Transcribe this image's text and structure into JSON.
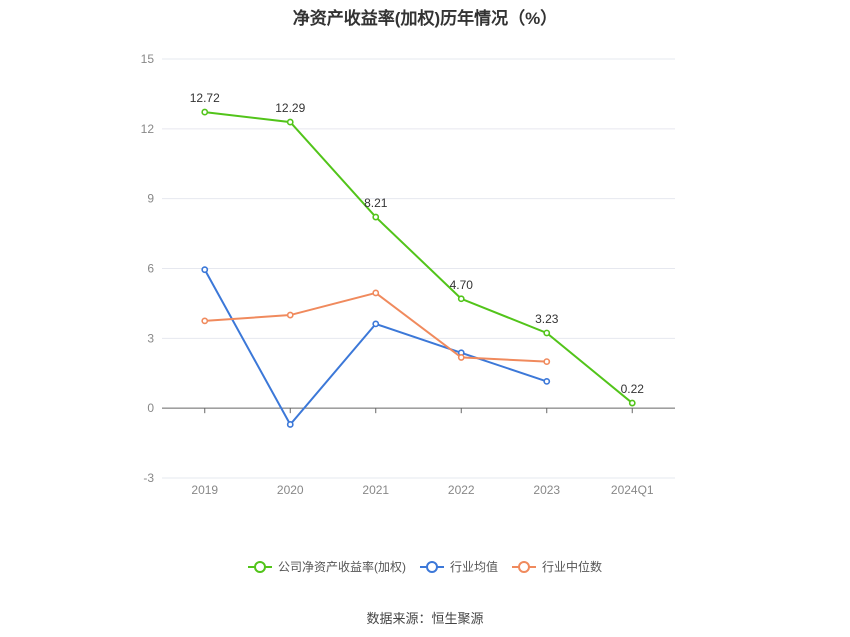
{
  "title": "净资产收益率(加权)历年情况（%）",
  "source": "数据来源：恒生聚源",
  "chart_data": {
    "type": "line",
    "categories": [
      "2019",
      "2020",
      "2021",
      "2022",
      "2023",
      "2024Q1"
    ],
    "yticks": [
      "15",
      "12",
      "9",
      "6",
      "3",
      "0",
      "-3"
    ],
    "ylim": [
      -3,
      15
    ],
    "grid": true,
    "legend_position": "bottom",
    "series": [
      {
        "name": "公司净资产收益率(加权)",
        "color": "#52c41a",
        "values": [
          12.72,
          12.29,
          8.21,
          4.7,
          3.23,
          0.22
        ],
        "labels": [
          "12.72",
          "12.29",
          "8.21",
          "4.70",
          "3.23",
          "0.22"
        ]
      },
      {
        "name": "行业均值",
        "color": "#3c78d8",
        "values": [
          5.95,
          -0.7,
          3.62,
          2.38,
          1.15,
          null
        ]
      },
      {
        "name": "行业中位数",
        "color": "#f08a5d",
        "values": [
          3.75,
          4.0,
          4.95,
          2.18,
          2.0,
          null
        ]
      }
    ]
  }
}
